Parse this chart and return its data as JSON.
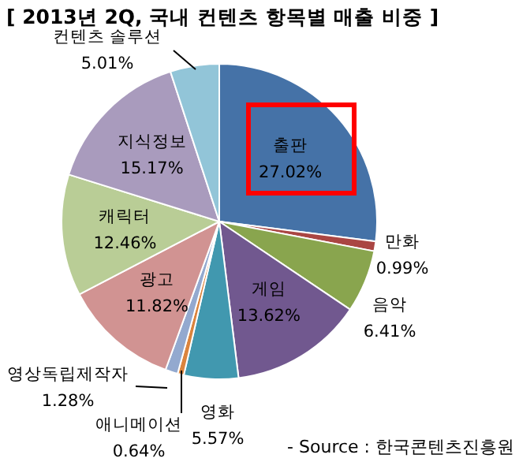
{
  "chart_data": {
    "type": "pie",
    "title": "[ 2013년 2Q, 국내 컨텐츠 항목별 매출 비중 ]",
    "categories": [
      "출판",
      "만화",
      "음악",
      "게임",
      "영화",
      "애니메이션",
      "영상독립제작자",
      "광고",
      "캐릭터",
      "지식정보",
      "컨텐츠 솔루션"
    ],
    "values": [
      27.02,
      0.99,
      6.41,
      13.62,
      5.57,
      0.64,
      1.28,
      11.82,
      12.46,
      15.17,
      5.01
    ],
    "value_labels": [
      "27.02%",
      "0.99%",
      "6.41%",
      "13.62%",
      "5.57%",
      "0.64%",
      "1.28%",
      "11.82%",
      "12.46%",
      "15.17%",
      "5.01%"
    ],
    "colors": [
      "#4572a7",
      "#aa4643",
      "#89a54e",
      "#71588f",
      "#4198af",
      "#db843d",
      "#93a9cf",
      "#d19392",
      "#b9cd96",
      "#a99bbd",
      "#92c5d8"
    ],
    "annotations": [
      "- Source : 한국콘텐츠진흥원"
    ],
    "legend": false
  }
}
